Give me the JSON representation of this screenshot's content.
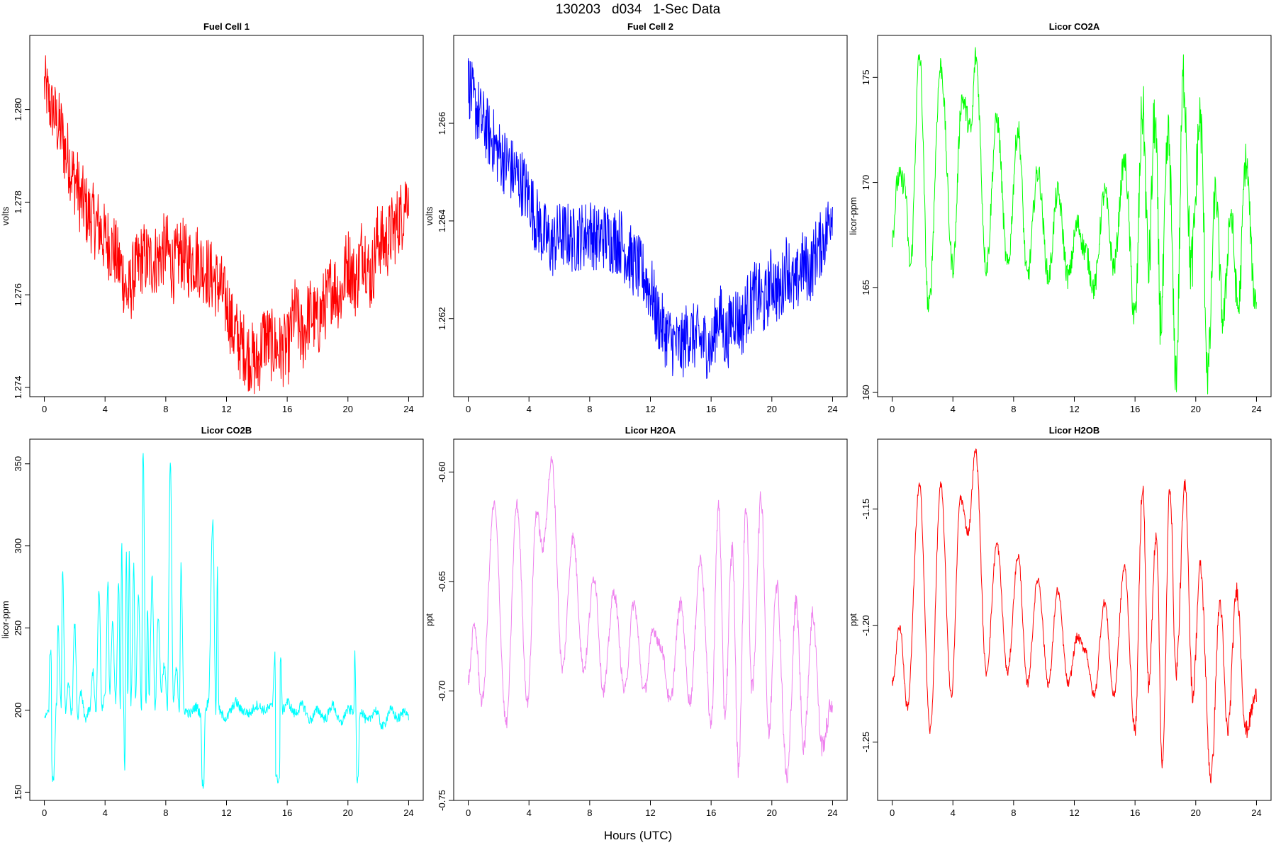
{
  "title": "130203   d034   1-Sec Data",
  "xlabel": "Hours (UTC)",
  "chart_data": [
    {
      "type": "line",
      "title": "Fuel Cell 1",
      "ylabel": "volts",
      "color": "#ff0000",
      "xlim": [
        0,
        24
      ],
      "ylim": [
        1.2738,
        1.2816
      ],
      "xticks": [
        "0",
        "4",
        "8",
        "12",
        "16",
        "20",
        "24"
      ],
      "yticks": [
        {
          "v": 1.274,
          "label": "1.274"
        },
        {
          "v": 1.276,
          "label": "1.276"
        },
        {
          "v": 1.278,
          "label": "1.278"
        },
        {
          "v": 1.28,
          "label": "1.280"
        }
      ],
      "x": [
        0,
        0.5,
        1,
        1.5,
        2,
        2.5,
        3,
        3.5,
        4,
        4.5,
        5,
        5.5,
        6,
        6.5,
        7,
        7.5,
        8,
        8.5,
        9,
        9.5,
        10,
        10.5,
        11,
        11.5,
        12,
        12.5,
        13,
        13.5,
        14,
        14.5,
        15,
        15.5,
        16,
        16.5,
        17,
        17.5,
        18,
        18.5,
        19,
        19.5,
        20,
        20.5,
        21,
        21.5,
        22,
        22.5,
        23,
        23.5,
        24
      ],
      "y": [
        1.2805,
        1.28,
        1.2796,
        1.279,
        1.2785,
        1.278,
        1.2777,
        1.2775,
        1.2772,
        1.277,
        1.2766,
        1.276,
        1.2765,
        1.2768,
        1.2767,
        1.2768,
        1.277,
        1.2766,
        1.2769,
        1.2767,
        1.2768,
        1.2766,
        1.2764,
        1.2762,
        1.2758,
        1.2752,
        1.2749,
        1.2747,
        1.2745,
        1.2751,
        1.2749,
        1.2748,
        1.2748,
        1.2756,
        1.2751,
        1.2756,
        1.2754,
        1.2758,
        1.2762,
        1.276,
        1.2767,
        1.2763,
        1.277,
        1.2764,
        1.2772,
        1.2771,
        1.2774,
        1.2777,
        1.2783
      ],
      "band": [
        0.0007,
        0.0007,
        0.0008,
        0.0008,
        0.0008,
        0.0008,
        0.0008,
        0.0008,
        0.0008,
        0.0008,
        0.0008,
        0.0008,
        0.0008,
        0.0008,
        0.0008,
        0.0008,
        0.0008,
        0.0008,
        0.0008,
        0.0008,
        0.0008,
        0.0008,
        0.0008,
        0.0008,
        0.0008,
        0.0008,
        0.0008,
        0.0008,
        0.0008,
        0.0008,
        0.0008,
        0.0008,
        0.0008,
        0.0008,
        0.0008,
        0.0008,
        0.0008,
        0.0008,
        0.0008,
        0.0008,
        0.0008,
        0.0008,
        0.0008,
        0.0008,
        0.0008,
        0.0008,
        0.0008,
        0.0008,
        0.0007
      ]
    },
    {
      "type": "line",
      "title": "Fuel Cell 2",
      "ylabel": "volts",
      "color": "#0000ff",
      "xlim": [
        0,
        24
      ],
      "ylim": [
        1.2604,
        1.2678
      ],
      "xticks": [
        "0",
        "4",
        "8",
        "12",
        "16",
        "20",
        "24"
      ],
      "yticks": [
        {
          "v": 1.262,
          "label": "1.262"
        },
        {
          "v": 1.264,
          "label": "1.264"
        },
        {
          "v": 1.266,
          "label": "1.266"
        }
      ],
      "x": [
        0,
        0.5,
        1,
        1.5,
        2,
        2.5,
        3,
        3.5,
        4,
        4.5,
        5,
        5.5,
        6,
        6.5,
        7,
        7.5,
        8,
        8.5,
        9,
        9.5,
        10,
        10.5,
        11,
        11.5,
        12,
        12.5,
        13,
        13.5,
        14,
        14.5,
        15,
        15.5,
        16,
        16.5,
        17,
        17.5,
        18,
        18.5,
        19,
        19.5,
        20,
        20.5,
        21,
        21.5,
        22,
        22.5,
        23,
        23.5,
        24
      ],
      "y": [
        1.2668,
        1.2663,
        1.266,
        1.2657,
        1.2654,
        1.2652,
        1.265,
        1.2648,
        1.2645,
        1.264,
        1.2637,
        1.2635,
        1.2637,
        1.2637,
        1.2636,
        1.2637,
        1.2638,
        1.2636,
        1.2637,
        1.2636,
        1.2636,
        1.2633,
        1.2631,
        1.2629,
        1.2626,
        1.262,
        1.2617,
        1.2615,
        1.2614,
        1.2617,
        1.2616,
        1.2615,
        1.2614,
        1.2621,
        1.2616,
        1.2621,
        1.2619,
        1.2623,
        1.2625,
        1.2623,
        1.2628,
        1.2625,
        1.2631,
        1.2626,
        1.2631,
        1.263,
        1.2634,
        1.2637,
        1.2643
      ],
      "band": [
        0.0007,
        0.0007,
        0.0007,
        0.0007,
        0.0007,
        0.0007,
        0.0007,
        0.0007,
        0.0007,
        0.0007,
        0.0007,
        0.0007,
        0.0007,
        0.0007,
        0.0007,
        0.0007,
        0.0007,
        0.0007,
        0.0007,
        0.0007,
        0.0007,
        0.0007,
        0.0007,
        0.0007,
        0.0007,
        0.0007,
        0.0007,
        0.0007,
        0.0007,
        0.0007,
        0.0007,
        0.0007,
        0.0007,
        0.0007,
        0.0007,
        0.0007,
        0.0007,
        0.0007,
        0.0007,
        0.0007,
        0.0007,
        0.0007,
        0.0007,
        0.0007,
        0.0007,
        0.0007,
        0.0007,
        0.0007,
        0.0007
      ]
    },
    {
      "type": "line",
      "title": "Licor CO2A",
      "ylabel": "licor-ppm",
      "color": "#00ff00",
      "xlim": [
        0,
        24
      ],
      "ylim": [
        159.8,
        177.0
      ],
      "xticks": [
        "0",
        "4",
        "8",
        "12",
        "16",
        "20",
        "24"
      ],
      "yticks": [
        {
          "v": 160,
          "label": "160"
        },
        {
          "v": 165,
          "label": "165"
        },
        {
          "v": 170,
          "label": "170"
        },
        {
          "v": 175,
          "label": "175"
        }
      ],
      "x": [
        0,
        0.4,
        0.8,
        1.2,
        1.8,
        2.4,
        3.2,
        4.0,
        4.6,
        5.2,
        5.5,
        6.2,
        6.9,
        7.6,
        8.3,
        8.9,
        9.6,
        10.3,
        10.9,
        11.6,
        12.2,
        12.7,
        13.3,
        14.0,
        14.6,
        15.3,
        16.0,
        16.5,
        16.9,
        17.3,
        17.7,
        18.2,
        18.7,
        19.2,
        19.7,
        20.3,
        20.8,
        21.3,
        21.8,
        22.3,
        22.8,
        23.3,
        23.9
      ],
      "y": [
        167.5,
        170.2,
        170.0,
        166.0,
        176.0,
        164.0,
        175.5,
        166.0,
        174.0,
        172.5,
        176.0,
        166.0,
        173.0,
        166.0,
        172.5,
        165.5,
        170.5,
        165.5,
        169.5,
        165.5,
        168.0,
        166.8,
        165.0,
        169.5,
        166.0,
        171.0,
        163.5,
        173.5,
        166.0,
        173.0,
        163.5,
        172.0,
        161.0,
        175.0,
        166.0,
        173.0,
        161.0,
        169.5,
        163.5,
        168.5,
        164.0,
        171.0,
        164.5
      ],
      "band": [
        0.6,
        0.6,
        0.6,
        0.6,
        0.6,
        0.6,
        0.6,
        0.6,
        0.6,
        0.6,
        0.6,
        0.6,
        0.6,
        0.6,
        0.6,
        0.6,
        0.6,
        0.6,
        0.6,
        0.6,
        0.6,
        0.6,
        0.6,
        0.6,
        0.6,
        0.6,
        1.0,
        1.6,
        1.6,
        1.6,
        1.6,
        1.6,
        1.4,
        1.6,
        1.6,
        1.6,
        1.4,
        1.0,
        1.0,
        1.0,
        1.0,
        1.0,
        0.8
      ]
    },
    {
      "type": "line",
      "title": "Licor CO2B",
      "ylabel": "licor-ppm",
      "color": "#00ffff",
      "xlim": [
        0,
        24
      ],
      "ylim": [
        145,
        365
      ],
      "xticks": [
        "0",
        "4",
        "8",
        "12",
        "16",
        "20",
        "24"
      ],
      "yticks": [
        {
          "v": 150,
          "label": "150"
        },
        {
          "v": 200,
          "label": "200"
        },
        {
          "v": 250,
          "label": "250"
        },
        {
          "v": 300,
          "label": "300"
        },
        {
          "v": 350,
          "label": "350"
        }
      ],
      "x": [
        0,
        0.3,
        0.35,
        0.45,
        0.5,
        0.6,
        0.8,
        0.9,
        1.1,
        1.2,
        1.4,
        1.6,
        1.8,
        2.0,
        2.2,
        2.4,
        2.7,
        3.0,
        3.2,
        3.4,
        3.6,
        3.8,
        4.0,
        4.2,
        4.3,
        4.5,
        4.7,
        4.9,
        5.0,
        5.1,
        5.2,
        5.3,
        5.4,
        5.5,
        5.6,
        5.7,
        5.9,
        6.0,
        6.2,
        6.4,
        6.5,
        6.7,
        6.8,
        6.9,
        7.1,
        7.3,
        7.5,
        7.7,
        7.9,
        8.1,
        8.3,
        8.5,
        8.7,
        8.9,
        9.0,
        9.2,
        9.6,
        10.0,
        10.3,
        10.4,
        10.5,
        10.6,
        10.8,
        11.1,
        11.3,
        11.4,
        11.5,
        11.7,
        12.0,
        12.3,
        12.6,
        13.0,
        13.5,
        14.0,
        14.5,
        15.0,
        15.2,
        15.25,
        15.5,
        15.55,
        15.7,
        16.0,
        16.5,
        17.0,
        17.5,
        18.0,
        18.5,
        19.0,
        19.5,
        20.0,
        20.4,
        20.45,
        20.6,
        20.65,
        20.8,
        21.3,
        21.8,
        22.3,
        22.8,
        23.3,
        23.8,
        24
      ],
      "y": [
        196,
        200,
        235,
        235,
        158,
        158,
        203,
        250,
        203,
        283,
        200,
        215,
        198,
        252,
        196,
        210,
        195,
        200,
        224,
        198,
        272,
        200,
        210,
        278,
        210,
        255,
        205,
        280,
        200,
        305,
        212,
        162,
        300,
        206,
        298,
        202,
        288,
        205,
        268,
        200,
        360,
        203,
        262,
        210,
        280,
        202,
        258,
        212,
        228,
        202,
        350,
        205,
        225,
        200,
        290,
        200,
        198,
        202,
        198,
        155,
        155,
        200,
        205,
        315,
        198,
        285,
        200,
        197,
        195,
        200,
        205,
        200,
        198,
        203,
        200,
        202,
        235,
        158,
        158,
        235,
        200,
        205,
        198,
        203,
        194,
        200,
        195,
        203,
        192,
        200,
        200,
        238,
        157,
        157,
        200,
        193,
        200,
        190,
        200,
        195,
        200,
        195
      ],
      "band": [
        2,
        2,
        2,
        2,
        2,
        2,
        3,
        3,
        3,
        3,
        3,
        3,
        3,
        3,
        3,
        3,
        3,
        3,
        3,
        3,
        3,
        3,
        3,
        3,
        3,
        3,
        3,
        3,
        3,
        3,
        3,
        3,
        3,
        3,
        3,
        3,
        3,
        3,
        3,
        3,
        3,
        3,
        3,
        3,
        3,
        3,
        3,
        3,
        3,
        3,
        3,
        3,
        3,
        3,
        3,
        3,
        3,
        3,
        3,
        3,
        3,
        3,
        3,
        3,
        3,
        3,
        3,
        3,
        3,
        3,
        3,
        3,
        3,
        3,
        3,
        3,
        3,
        3,
        3,
        3,
        3,
        3,
        3,
        3,
        3,
        3,
        3,
        3,
        3,
        3,
        3,
        3,
        3,
        3,
        3,
        3,
        3,
        3,
        3,
        3,
        3,
        3
      ]
    },
    {
      "type": "line",
      "title": "Licor H2OA",
      "ylabel": "ppt",
      "color": "#ee82ee",
      "xlim": [
        0,
        24
      ],
      "ylim": [
        -0.75,
        -0.585
      ],
      "xticks": [
        "0",
        "4",
        "8",
        "12",
        "16",
        "20",
        "24"
      ],
      "yticks": [
        {
          "v": -0.75,
          "label": "-0.75"
        },
        {
          "v": -0.7,
          "label": "-0.70"
        },
        {
          "v": -0.65,
          "label": "-0.65"
        },
        {
          "v": -0.6,
          "label": "-0.60"
        }
      ],
      "x": [
        0,
        0.4,
        0.9,
        1.7,
        2.5,
        3.2,
        3.9,
        4.5,
        4.9,
        5.5,
        6.2,
        6.9,
        7.6,
        8.3,
        8.9,
        9.6,
        10.3,
        10.9,
        11.6,
        12.2,
        12.7,
        13.3,
        14.0,
        14.6,
        15.3,
        16.0,
        16.5,
        16.9,
        17.4,
        17.8,
        18.3,
        18.7,
        19.3,
        19.8,
        20.3,
        21.0,
        21.6,
        22.1,
        22.7,
        23.3,
        24.0
      ],
      "y": [
        -0.695,
        -0.67,
        -0.705,
        -0.615,
        -0.715,
        -0.615,
        -0.705,
        -0.618,
        -0.635,
        -0.595,
        -0.69,
        -0.63,
        -0.69,
        -0.648,
        -0.7,
        -0.655,
        -0.7,
        -0.66,
        -0.7,
        -0.672,
        -0.68,
        -0.705,
        -0.66,
        -0.705,
        -0.64,
        -0.715,
        -0.615,
        -0.71,
        -0.635,
        -0.735,
        -0.615,
        -0.7,
        -0.612,
        -0.72,
        -0.65,
        -0.74,
        -0.66,
        -0.725,
        -0.665,
        -0.725,
        -0.705
      ],
      "band": [
        0.003,
        0.003,
        0.003,
        0.003,
        0.003,
        0.003,
        0.003,
        0.003,
        0.003,
        0.003,
        0.003,
        0.003,
        0.003,
        0.003,
        0.003,
        0.003,
        0.003,
        0.003,
        0.003,
        0.003,
        0.003,
        0.003,
        0.003,
        0.003,
        0.003,
        0.004,
        0.005,
        0.005,
        0.005,
        0.005,
        0.005,
        0.005,
        0.005,
        0.005,
        0.005,
        0.005,
        0.005,
        0.005,
        0.005,
        0.005,
        0.005
      ]
    },
    {
      "type": "line",
      "title": "Licor H2OB",
      "ylabel": "ppt",
      "color": "#ff0000",
      "xlim": [
        0,
        24
      ],
      "ylim": [
        -1.275,
        -1.12
      ],
      "xticks": [
        "0",
        "4",
        "8",
        "12",
        "16",
        "20",
        "24"
      ],
      "yticks": [
        {
          "v": -1.25,
          "label": "-1.25"
        },
        {
          "v": -1.2,
          "label": "-1.20"
        },
        {
          "v": -1.15,
          "label": "-1.15"
        }
      ],
      "x": [
        0,
        0.5,
        1.0,
        1.8,
        2.5,
        3.2,
        3.9,
        4.5,
        5.0,
        5.5,
        6.2,
        6.9,
        7.6,
        8.3,
        8.9,
        9.6,
        10.3,
        10.9,
        11.6,
        12.2,
        12.7,
        13.3,
        14.0,
        14.6,
        15.3,
        16.0,
        16.5,
        16.9,
        17.4,
        17.8,
        18.3,
        18.7,
        19.3,
        19.8,
        20.3,
        21.0,
        21.6,
        22.1,
        22.7,
        23.3,
        24.0
      ],
      "y": [
        -1.225,
        -1.2,
        -1.235,
        -1.14,
        -1.245,
        -1.14,
        -1.23,
        -1.145,
        -1.16,
        -1.125,
        -1.22,
        -1.165,
        -1.22,
        -1.17,
        -1.225,
        -1.18,
        -1.225,
        -1.185,
        -1.225,
        -1.205,
        -1.21,
        -1.23,
        -1.19,
        -1.23,
        -1.175,
        -1.245,
        -1.14,
        -1.225,
        -1.16,
        -1.26,
        -1.14,
        -1.22,
        -1.14,
        -1.23,
        -1.175,
        -1.265,
        -1.19,
        -1.245,
        -1.185,
        -1.245,
        -1.23
      ],
      "band": [
        0.002,
        0.002,
        0.002,
        0.002,
        0.002,
        0.002,
        0.002,
        0.002,
        0.002,
        0.002,
        0.002,
        0.002,
        0.002,
        0.002,
        0.002,
        0.002,
        0.002,
        0.002,
        0.002,
        0.002,
        0.002,
        0.002,
        0.002,
        0.002,
        0.002,
        0.003,
        0.004,
        0.004,
        0.004,
        0.004,
        0.004,
        0.004,
        0.004,
        0.004,
        0.004,
        0.004,
        0.004,
        0.004,
        0.004,
        0.004,
        0.004
      ]
    }
  ]
}
